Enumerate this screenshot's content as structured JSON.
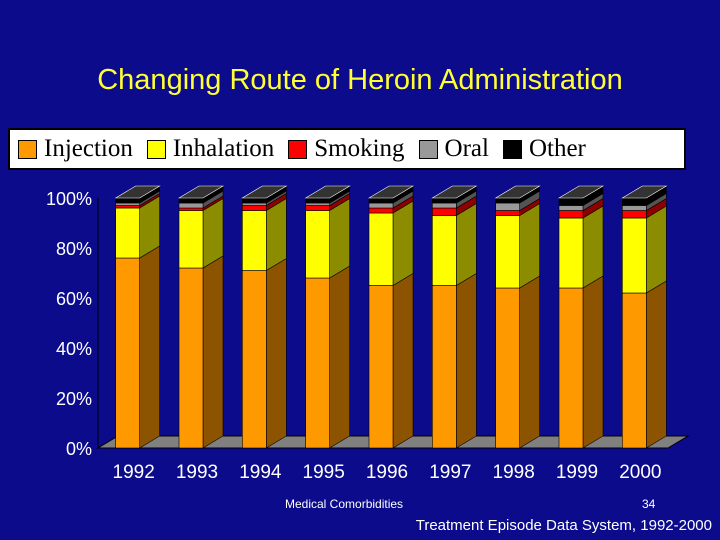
{
  "title": "Changing Route of Heroin Administration",
  "footer": {
    "left": "Medical Comorbidities",
    "page": "34",
    "source": "Treatment Episode Data System, 1992-2000"
  },
  "colors": {
    "background": "#0b0b8c",
    "Injection": "#ff9900",
    "Inhalation": "#ffff00",
    "Smoking": "#ff0000",
    "Oral": "#999999",
    "Other": "#000000"
  },
  "chart_data": {
    "type": "bar",
    "stacked": true,
    "three_d": true,
    "title": "",
    "xlabel": "",
    "ylabel": "",
    "ylim": [
      0,
      100
    ],
    "yticks": [
      "0%",
      "20%",
      "40%",
      "60%",
      "80%",
      "100%"
    ],
    "legend_position": "top",
    "categories": [
      "1992",
      "1993",
      "1994",
      "1995",
      "1996",
      "1997",
      "1998",
      "1999",
      "2000"
    ],
    "series": [
      {
        "name": "Injection",
        "values": [
          76,
          72,
          71,
          68,
          65,
          65,
          64,
          64,
          62
        ]
      },
      {
        "name": "Inhalation",
        "values": [
          20,
          23,
          24,
          27,
          29,
          28,
          29,
          28,
          30
        ]
      },
      {
        "name": "Smoking",
        "values": [
          1,
          1,
          2,
          2,
          2,
          3,
          2,
          3,
          3
        ]
      },
      {
        "name": "Oral",
        "values": [
          1,
          2,
          1,
          1,
          2,
          2,
          3,
          2,
          2
        ]
      },
      {
        "name": "Other",
        "values": [
          2,
          2,
          2,
          2,
          2,
          2,
          2,
          3,
          3
        ]
      }
    ]
  }
}
